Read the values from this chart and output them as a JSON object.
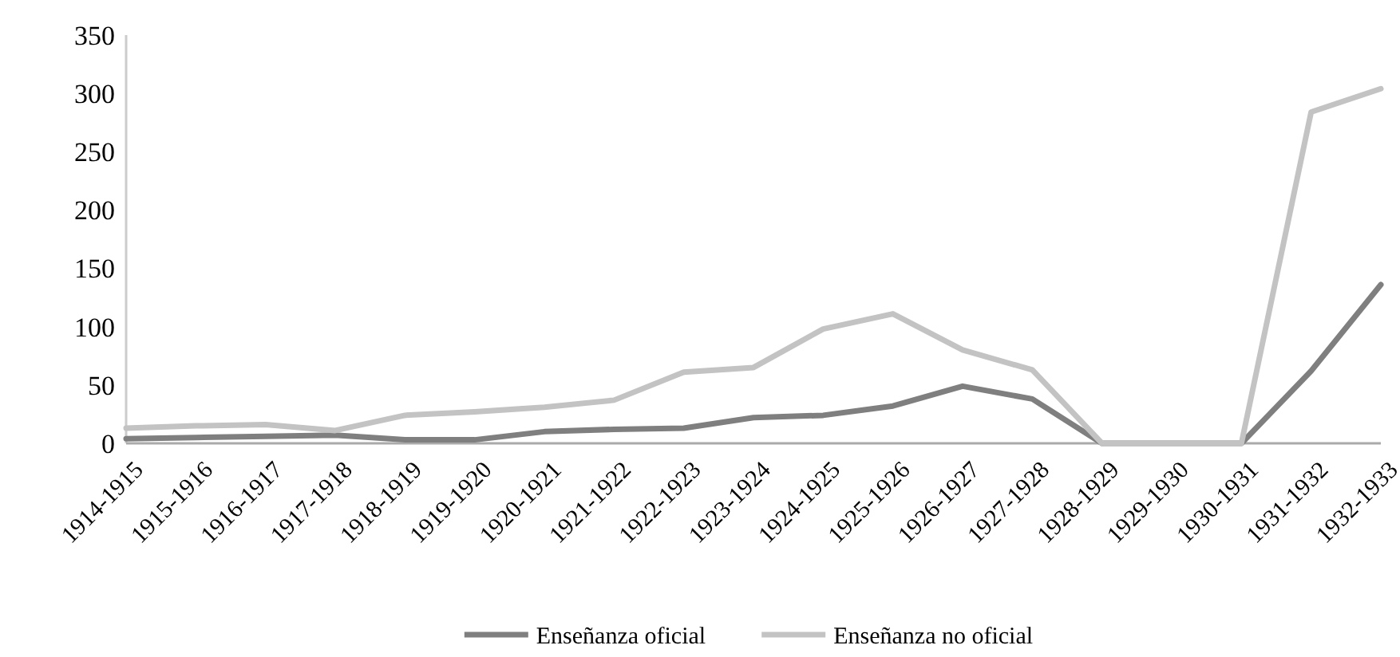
{
  "chart_data": {
    "type": "line",
    "categories": [
      "1914-1915",
      "1915-1916",
      "1916-1917",
      "1917-1918",
      "1918-1919",
      "1919-1920",
      "1920-1921",
      "1921-1922",
      "1922-1923",
      "1923-1924",
      "1924-1925",
      "1925-1926",
      "1926-1927",
      "1927-1928",
      "1928-1929",
      "1929-1930",
      "1930-1931",
      "1931-1932",
      "1932-1933"
    ],
    "series": [
      {
        "name": "Enseñanza oficial",
        "color": "#7f7f7f",
        "values": [
          4,
          5,
          6,
          7,
          3,
          3,
          10,
          12,
          13,
          22,
          24,
          32,
          49,
          38,
          0,
          0,
          0,
          62,
          136
        ]
      },
      {
        "name": "Enseñanza no oficial",
        "color": "#c3c3c3",
        "values": [
          13,
          15,
          16,
          11,
          24,
          27,
          31,
          37,
          61,
          65,
          98,
          111,
          80,
          63,
          0,
          0,
          0,
          284,
          304
        ]
      }
    ],
    "ylim": [
      0,
      350
    ],
    "yticks": [
      0,
      50,
      100,
      150,
      200,
      250,
      300,
      350
    ],
    "grid": false,
    "legend": "bottom",
    "marker": "none",
    "line_style": "solid"
  }
}
